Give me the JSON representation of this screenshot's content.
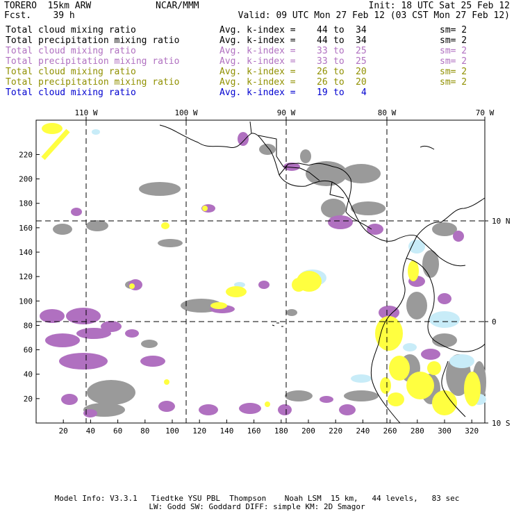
{
  "header": {
    "model": "TORERO  15km ARW",
    "forecast": "Fcst.    39 h",
    "center": "NCAR/MMM",
    "init": "Init: 18 UTC Sat 25 Feb 12",
    "valid": "Valid: 09 UTC Mon 27 Feb 12 (03 CST Mon 27 Feb 12)"
  },
  "legend": [
    {
      "field": "Total cloud mixing ratio",
      "index": "Avg. k-index =",
      "from": "44",
      "to": "34",
      "sm": "sm= 2",
      "color": "#000000"
    },
    {
      "field": "Total precipitation mixing ratio",
      "index": "Avg. k-index =",
      "from": "44",
      "to": "34",
      "sm": "sm= 2",
      "color": "#000000"
    },
    {
      "field": "Total cloud mixing ratio",
      "index": "Avg. k-index =",
      "from": "33",
      "to": "25",
      "sm": "sm= 2",
      "color": "#b070c0"
    },
    {
      "field": "Total precipitation mixing ratio",
      "index": "Avg. k-index =",
      "from": "33",
      "to": "25",
      "sm": "sm= 2",
      "color": "#b070c0"
    },
    {
      "field": "Total cloud mixing ratio",
      "index": "Avg. k-index =",
      "from": "26",
      "to": "20",
      "sm": "sm= 2",
      "color": "#909000"
    },
    {
      "field": "Total precipitation mixing ratio",
      "index": "Avg. k-index =",
      "from": "26",
      "to": "20",
      "sm": "sm= 2",
      "color": "#909000"
    },
    {
      "field": "Total cloud mixing ratio",
      "index": "Avg. k-index =",
      "from": "19",
      "to": "4",
      "sm": "",
      "color": "#0000d0"
    }
  ],
  "map": {
    "lon_labels": [
      "110 W",
      "100 W",
      "90 W",
      "80 W",
      "70 W"
    ],
    "lat_labels": [
      "10 N",
      "0",
      "10 S"
    ],
    "x_ticks": [
      "20",
      "40",
      "60",
      "80",
      "100",
      "120",
      "140",
      "160",
      "180",
      "200",
      "220",
      "240",
      "260",
      "280",
      "300",
      "320"
    ],
    "y_ticks": [
      "220",
      "200",
      "180",
      "160",
      "140",
      "120",
      "100",
      "80",
      "60",
      "40",
      "20"
    ],
    "colors": {
      "cloud_gray": "#9a9a9a",
      "purple": "#b070c0",
      "yellow": "#ffff40",
      "lightblue": "#c8ecf8"
    }
  },
  "footer": {
    "line1": "Model Info: V3.3.1   Tiedtke YSU PBL  Thompson    Noah LSM  15 km,   44 levels,   83 sec",
    "line2": "LW: Godd SW: Goddard DIFF: simple KM: 2D Smagor"
  }
}
